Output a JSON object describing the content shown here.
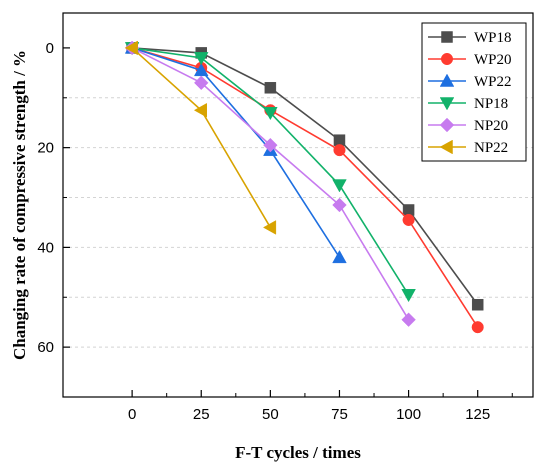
{
  "chart_data": {
    "type": "line",
    "xlabel": "F-T cycles / times",
    "ylabel": "Changing rate of compressive strength / %",
    "x_ticks": [
      0,
      25,
      50,
      75,
      100,
      125
    ],
    "y_ticks": [
      0,
      20,
      40,
      60
    ],
    "xlim": [
      -25,
      145
    ],
    "ylim": [
      -7,
      70
    ],
    "y_inverted": true,
    "legend_position": "top-right",
    "grid": "horizontal dashed",
    "series": [
      {
        "name": "WP18",
        "color": "#4d4d4d",
        "marker": "square",
        "x": [
          0,
          25,
          50,
          75,
          100,
          125
        ],
        "y": [
          0,
          1,
          8,
          18.5,
          32.5,
          51.5
        ]
      },
      {
        "name": "WP20",
        "color": "#ff3b30",
        "marker": "circle",
        "x": [
          0,
          25,
          50,
          75,
          100,
          125
        ],
        "y": [
          0,
          4,
          12.5,
          20.5,
          34.5,
          56
        ]
      },
      {
        "name": "WP22",
        "color": "#1e6fe0",
        "marker": "triangle-up",
        "x": [
          0,
          25,
          50,
          75
        ],
        "y": [
          0,
          4.5,
          20.5,
          42
        ]
      },
      {
        "name": "NP18",
        "color": "#12b26a",
        "marker": "triangle-down",
        "x": [
          0,
          25,
          50,
          75,
          100
        ],
        "y": [
          0,
          2,
          13,
          27.5,
          49.5
        ]
      },
      {
        "name": "NP20",
        "color": "#c77bef",
        "marker": "diamond",
        "x": [
          0,
          25,
          50,
          75,
          100
        ],
        "y": [
          0,
          7,
          19.5,
          31.5,
          54.5
        ]
      },
      {
        "name": "NP22",
        "color": "#d8a300",
        "marker": "triangle-left",
        "x": [
          0,
          25,
          50
        ],
        "y": [
          0,
          12.5,
          36
        ]
      }
    ]
  }
}
